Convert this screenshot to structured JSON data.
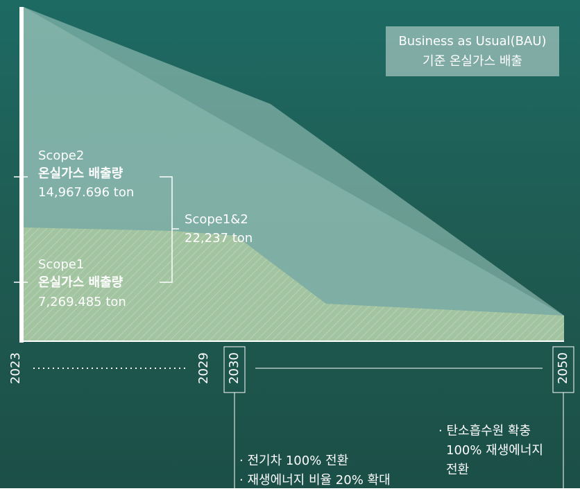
{
  "legend_box": {
    "line1": "Business as Usual(BAU)",
    "line2": "기준 온실가스 배출"
  },
  "scope2": {
    "name": "Scope2",
    "label": "온실가스 배출량",
    "amount": "14,967.696 ton"
  },
  "scope1": {
    "name": "Scope1",
    "label": "온실가스 배출량",
    "amount": "7,269.485 ton"
  },
  "total": {
    "name": "Scope1&2",
    "amount": "22,237 ton"
  },
  "timeline": {
    "years": [
      "2023",
      "2029",
      "2030",
      "2050"
    ]
  },
  "milestones": [
    {
      "items": [
        "· 전기차 100% 전환",
        "· 재생에너지 비율 20% 확대"
      ]
    },
    {
      "items": [
        "· 탄소흡수원 확충",
        "100% 재생에너지",
        "전환"
      ]
    }
  ]
}
